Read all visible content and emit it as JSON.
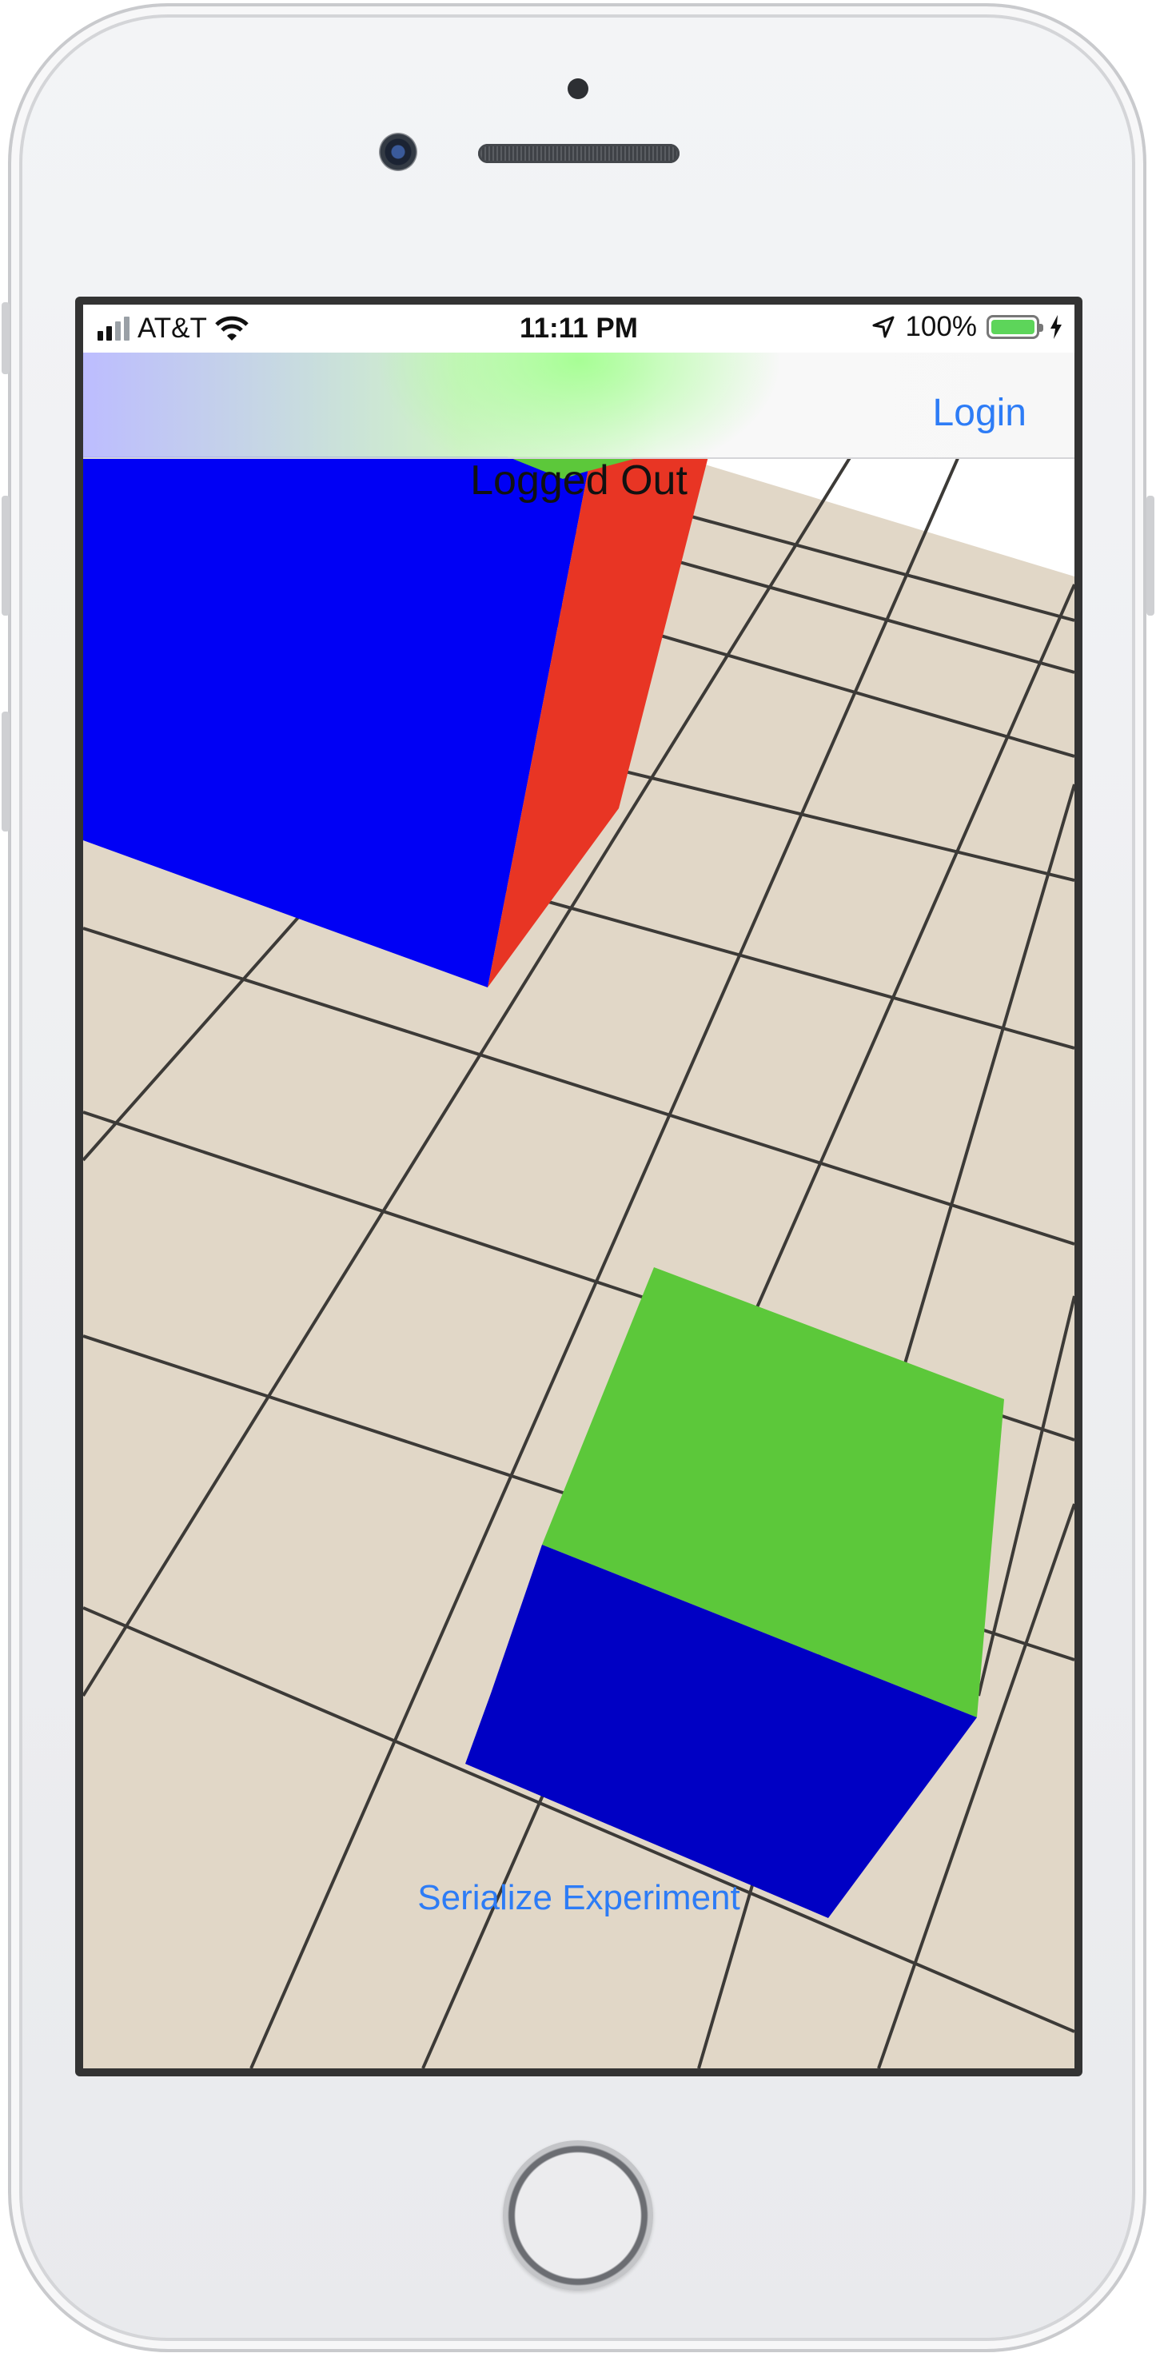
{
  "status_bar": {
    "carrier": "AT&T",
    "time": "11:11 PM",
    "battery_percent": "100%",
    "battery_level": 1.0,
    "icons": [
      "signal-bars-icon",
      "wifi-icon",
      "location-arrow-icon",
      "battery-icon",
      "charging-bolt-icon"
    ]
  },
  "nav_bar": {
    "login_label": "Login"
  },
  "main": {
    "status_text": "Logged Out",
    "serialize_label": "Serialize Experiment"
  },
  "scene": {
    "floor_color": "#E1D7C7",
    "grid_line_color": "#3C3A37",
    "cube_colors": {
      "blue": "#0000F5",
      "red": "#E83524",
      "green": "#5CC83A",
      "dark_blue": "#0000C4"
    }
  },
  "device": {
    "icons": [
      "front-camera-icon",
      "earpiece-speaker-icon",
      "home-button-icon"
    ]
  }
}
